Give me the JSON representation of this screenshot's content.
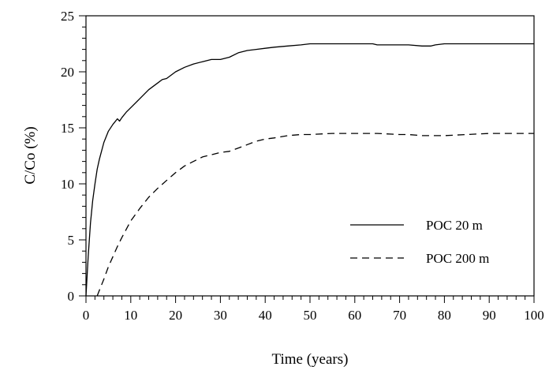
{
  "chart_data": {
    "type": "line",
    "title": "",
    "xlabel": "Time (years)",
    "ylabel": "C/Co (%)",
    "xlim": [
      0,
      100
    ],
    "ylim": [
      0,
      25
    ],
    "x_ticks": [
      "0",
      "10",
      "20",
      "30",
      "40",
      "50",
      "60",
      "70",
      "80",
      "90",
      "100"
    ],
    "y_ticks": [
      "0",
      "5",
      "10",
      "15",
      "20",
      "25"
    ],
    "grid": false,
    "legend_position": "lower-right",
    "series": [
      {
        "name": "POC 20 m",
        "line_style": "solid",
        "color": "#000000",
        "x": [
          0,
          0.5,
          1,
          1.5,
          2,
          2.5,
          3,
          4,
          5,
          6,
          7,
          7.5,
          8,
          9,
          10,
          12,
          14,
          16,
          17,
          18,
          20,
          22,
          24,
          26,
          28,
          30,
          32,
          34,
          36,
          38,
          40,
          42,
          45,
          48,
          50,
          55,
          60,
          64,
          65,
          70,
          72,
          75,
          77,
          78,
          80,
          85,
          90,
          95,
          100
        ],
        "y": [
          0,
          3.5,
          6.5,
          8.5,
          10,
          11.3,
          12.2,
          13.7,
          14.7,
          15.3,
          15.8,
          15.6,
          15.9,
          16.4,
          16.8,
          17.6,
          18.4,
          19.0,
          19.3,
          19.4,
          20.0,
          20.4,
          20.7,
          20.9,
          21.1,
          21.1,
          21.3,
          21.7,
          21.9,
          22.0,
          22.1,
          22.2,
          22.3,
          22.4,
          22.5,
          22.5,
          22.5,
          22.5,
          22.4,
          22.4,
          22.4,
          22.3,
          22.3,
          22.4,
          22.5,
          22.5,
          22.5,
          22.5,
          22.5
        ]
      },
      {
        "name": "POC 200 m",
        "line_style": "dashed",
        "color": "#000000",
        "x": [
          2.5,
          3,
          4,
          5,
          6,
          7,
          8,
          10,
          12,
          14,
          16,
          18,
          20,
          22,
          24,
          26,
          28,
          30,
          32,
          34,
          36,
          38,
          40,
          42,
          45,
          48,
          50,
          55,
          60,
          65,
          70,
          72,
          75,
          80,
          85,
          90,
          95,
          100
        ],
        "y": [
          0,
          0.5,
          1.5,
          2.6,
          3.5,
          4.4,
          5.2,
          6.7,
          7.8,
          8.8,
          9.6,
          10.3,
          11.0,
          11.6,
          12.0,
          12.4,
          12.6,
          12.8,
          12.9,
          13.2,
          13.5,
          13.8,
          14.0,
          14.1,
          14.3,
          14.4,
          14.4,
          14.5,
          14.5,
          14.5,
          14.4,
          14.4,
          14.3,
          14.3,
          14.4,
          14.5,
          14.5,
          14.5
        ]
      }
    ]
  }
}
